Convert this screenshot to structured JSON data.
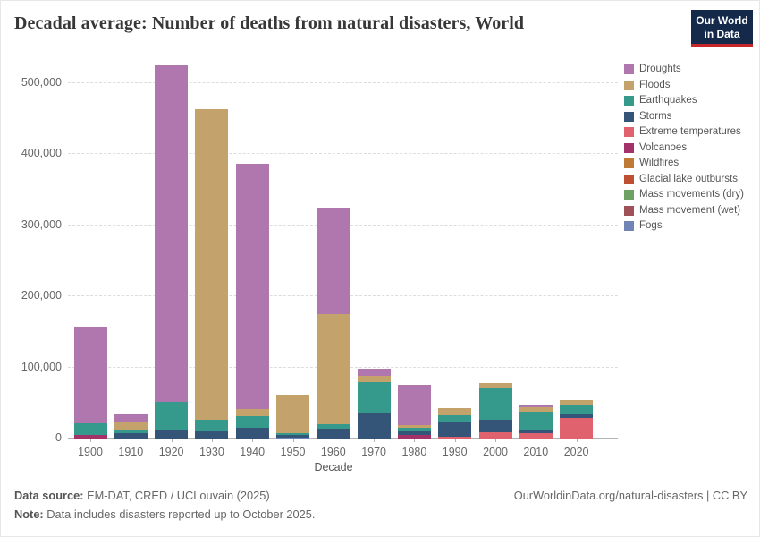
{
  "header": {
    "logo": {
      "line1": "Our World",
      "line2": "in Data",
      "bg_color": "#15294b",
      "bar_color": "#c5262c"
    }
  },
  "chart_data": {
    "type": "bar",
    "stacked": true,
    "title": "Decadal average: Number of deaths from natural disasters, World",
    "xlabel": "Decade",
    "ylabel": "",
    "ylim": [
      0,
      500000
    ],
    "grid": "dashed-horizontal",
    "legend_position": "right",
    "yticks": [
      0,
      100000,
      200000,
      300000,
      400000,
      500000
    ],
    "ytick_labels": [
      "0",
      "100,000",
      "200,000",
      "300,000",
      "400,000",
      "500,000"
    ],
    "categories": [
      "1900",
      "1910",
      "1920",
      "1930",
      "1940",
      "1950",
      "1960",
      "1970",
      "1980",
      "1990",
      "2000",
      "2010",
      "2020"
    ],
    "series": [
      {
        "id": "droughts",
        "name": "Droughts",
        "color": "#b077ae",
        "values": [
          137000,
          10500,
          473000,
          0,
          345000,
          0,
          151000,
          11000,
          57000,
          0,
          0,
          2500,
          0
        ]
      },
      {
        "id": "floods",
        "name": "Floods",
        "color": "#c3a26b",
        "values": [
          0,
          11000,
          0,
          438000,
          10000,
          54000,
          154000,
          9000,
          3500,
          9500,
          7000,
          6000,
          7500
        ]
      },
      {
        "id": "earthquakes",
        "name": "Earthquakes",
        "color": "#35998c",
        "values": [
          16000,
          5500,
          40000,
          16000,
          17000,
          3000,
          6500,
          43000,
          5500,
          8500,
          45000,
          26000,
          12000
        ]
      },
      {
        "id": "storms",
        "name": "Storms",
        "color": "#345578",
        "values": [
          0,
          7000,
          12000,
          10000,
          15000,
          4000,
          14000,
          36000,
          5000,
          22000,
          17000,
          4000,
          5000
        ]
      },
      {
        "id": "extreme-temperatures",
        "name": "Extreme temperatures",
        "color": "#e0626f",
        "values": [
          0,
          0,
          0,
          0,
          0,
          0,
          0,
          0,
          0,
          2500,
          9500,
          7500,
          29500
        ]
      },
      {
        "id": "volcanoes",
        "name": "Volcanoes",
        "color": "#a33269",
        "values": [
          5000,
          0,
          0,
          0,
          0,
          0,
          0,
          0,
          5000,
          0,
          0,
          0,
          0
        ]
      },
      {
        "id": "wildfires",
        "name": "Wildfires",
        "color": "#bf7b35",
        "values": [
          0,
          0,
          0,
          0,
          0,
          0,
          0,
          0,
          0,
          0,
          0,
          0,
          0
        ]
      },
      {
        "id": "glacial-lake-outbursts",
        "name": "Glacial lake outbursts",
        "color": "#bf4f33",
        "values": [
          0,
          0,
          0,
          0,
          0,
          0,
          0,
          0,
          0,
          0,
          0,
          0,
          0
        ]
      },
      {
        "id": "mass-movements-dry",
        "name": "Mass movements (dry)",
        "color": "#6fa164",
        "values": [
          0,
          0,
          0,
          0,
          0,
          0,
          0,
          0,
          0,
          0,
          0,
          0,
          0
        ]
      },
      {
        "id": "mass-movement-wet",
        "name": "Mass movement (wet)",
        "color": "#9e5258",
        "values": [
          0,
          0,
          0,
          0,
          0,
          0,
          0,
          0,
          0,
          0,
          0,
          0,
          0
        ]
      },
      {
        "id": "fogs",
        "name": "Fogs",
        "color": "#7085b5",
        "values": [
          0,
          0,
          0,
          0,
          0,
          1000,
          0,
          0,
          0,
          0,
          0,
          0,
          0
        ]
      }
    ],
    "stack_order_note": "series listed top-of-stack first (legend order); stacks render bottom-up in reverse"
  },
  "footer": {
    "datasource_label": "Data source:",
    "datasource_value": " EM-DAT, CRED / UCLouvain (2025)",
    "note_label": "Note:",
    "note_value": " Data includes disasters reported up to October 2025.",
    "right_link": "OurWorldinData.org/natural-disasters | CC BY"
  }
}
